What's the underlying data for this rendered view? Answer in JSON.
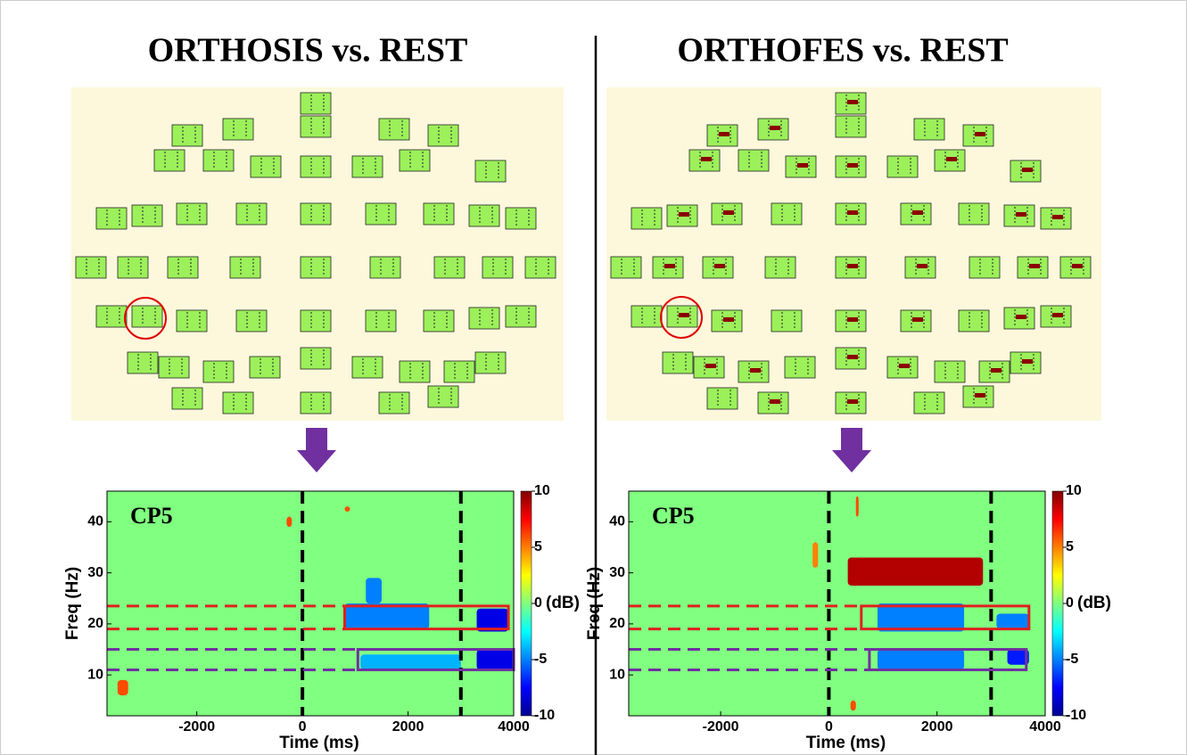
{
  "chart_data": [
    {
      "type": "heatmap",
      "title": "ORTHOSIS vs. REST",
      "annotation": "CP5",
      "xlabel": "Time (ms)",
      "ylabel": "Freq (Hz)",
      "xlim": [
        -3700,
        4000
      ],
      "ylim": [
        2,
        46
      ],
      "xticks": [
        -2000,
        0,
        2000,
        4000
      ],
      "yticks": [
        10,
        20,
        30,
        40
      ],
      "colormap": "jet",
      "background_value": 0,
      "clim": [
        -10,
        10
      ],
      "cticks": [
        -10,
        -5,
        0,
        5,
        10
      ],
      "clabel": "(dB)",
      "events": [
        0,
        3000
      ],
      "bands": [
        {
          "x": [
            800,
            3900
          ],
          "y": [
            19,
            23.5
          ],
          "color": "#e02020"
        },
        {
          "x": [
            1050,
            4000
          ],
          "y": [
            11,
            15
          ],
          "color": "#7030a0"
        }
      ],
      "patches": [
        {
          "x": [
            800,
            2400
          ],
          "y": [
            19,
            24
          ],
          "value": -5
        },
        {
          "x": [
            1200,
            1500
          ],
          "y": [
            24,
            29
          ],
          "value": -5
        },
        {
          "x": [
            3300,
            3900
          ],
          "y": [
            18.5,
            23
          ],
          "value": -8
        },
        {
          "x": [
            1100,
            3000
          ],
          "y": [
            11,
            14
          ],
          "value": -4
        },
        {
          "x": [
            3300,
            4000
          ],
          "y": [
            11,
            15
          ],
          "value": -8
        },
        {
          "x": [
            -3500,
            -3300
          ],
          "y": [
            6,
            9
          ],
          "value": 6
        },
        {
          "x": [
            -300,
            -200
          ],
          "y": [
            39,
            41
          ],
          "value": 6
        },
        {
          "x": [
            800,
            900
          ],
          "y": [
            42,
            43
          ],
          "value": 6
        }
      ]
    },
    {
      "type": "heatmap",
      "title": "ORTHOFES vs. REST",
      "annotation": "CP5",
      "xlabel": "Time (ms)",
      "ylabel": "Freq (Hz)",
      "xlim": [
        -3700,
        4000
      ],
      "ylim": [
        2,
        46
      ],
      "xticks": [
        -2000,
        0,
        2000,
        4000
      ],
      "yticks": [
        10,
        20,
        30,
        40
      ],
      "colormap": "jet",
      "background_value": 0,
      "clim": [
        -10,
        10
      ],
      "cticks": [
        -10,
        -5,
        0,
        5,
        10
      ],
      "clabel": "(dB)",
      "events": [
        0,
        3000
      ],
      "bands": [
        {
          "x": [
            600,
            3700
          ],
          "y": [
            19,
            23.5
          ],
          "color": "#e02020"
        },
        {
          "x": [
            750,
            3650
          ],
          "y": [
            11,
            15
          ],
          "color": "#7030a0"
        }
      ],
      "patches": [
        {
          "x": [
            350,
            2850
          ],
          "y": [
            27.5,
            33
          ],
          "value": 9
        },
        {
          "x": [
            900,
            2500
          ],
          "y": [
            18.5,
            24
          ],
          "value": -5
        },
        {
          "x": [
            3100,
            3700
          ],
          "y": [
            19,
            22
          ],
          "value": -5
        },
        {
          "x": [
            900,
            2500
          ],
          "y": [
            11,
            15
          ],
          "value": -5
        },
        {
          "x": [
            3300,
            3700
          ],
          "y": [
            12,
            15
          ],
          "value": -7
        },
        {
          "x": [
            -300,
            -200
          ],
          "y": [
            31,
            36
          ],
          "value": 5
        },
        {
          "x": [
            400,
            500
          ],
          "y": [
            3,
            5
          ],
          "value": 6
        },
        {
          "x": [
            500,
            550
          ],
          "y": [
            41,
            45
          ],
          "value": 6
        }
      ]
    }
  ]
}
